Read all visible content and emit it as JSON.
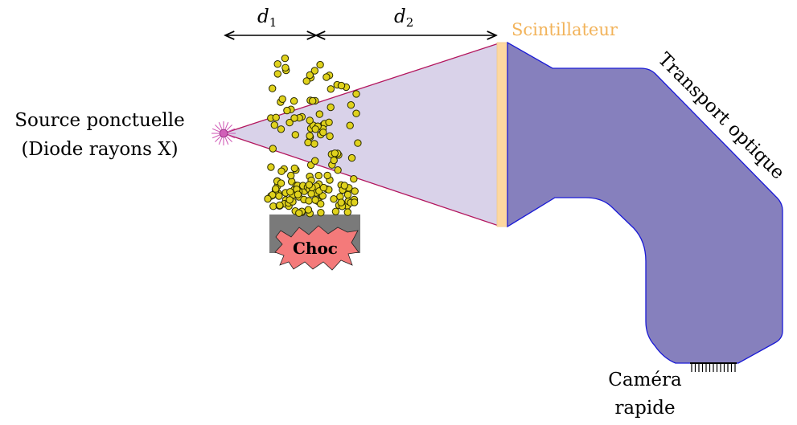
{
  "source": {
    "line1": "Source ponctuelle",
    "line2": "(Diode rayons X)"
  },
  "distances": {
    "d1": {
      "symbol": "d",
      "index": "1"
    },
    "d2": {
      "symbol": "d",
      "index": "2"
    }
  },
  "target": {
    "label": "Choc"
  },
  "detector": {
    "label": "Scintillateur"
  },
  "optics": {
    "label": "Transport optique"
  },
  "camera": {
    "line1": "Caméra",
    "line2": "rapide"
  },
  "colors": {
    "beam_fill": "#d9d2e9",
    "beam_stroke": "#b3165e",
    "scintillator": "#fdd8a0",
    "optics_fill": "#8680bd",
    "optics_stroke": "#1a1ad6",
    "particle": "#e0d21c",
    "block": "#7a7a7a",
    "choc_fill": "#f47a7a",
    "source": "#d15fb8"
  }
}
